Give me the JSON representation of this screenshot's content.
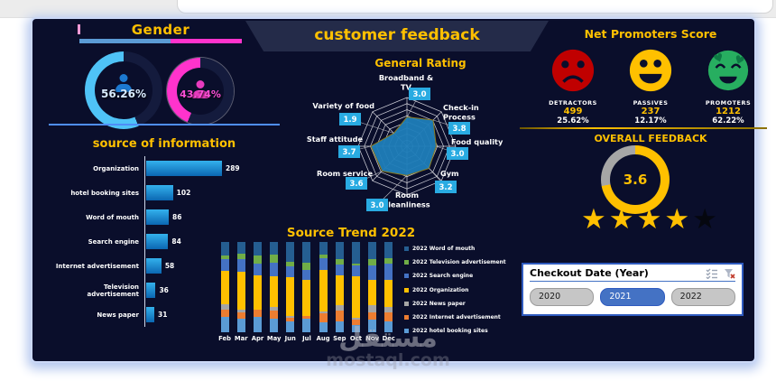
{
  "page": {
    "watermark_line1": "مستقل",
    "watermark_line2": "mostaql.com"
  },
  "header_banner": {
    "title": "customer feedback"
  },
  "gender": {
    "title": "Gender",
    "male": {
      "percent": "56.26%",
      "value": 56.26,
      "color": "#4fc3f7"
    },
    "female": {
      "percent": "43.74%",
      "value": 43.74,
      "color": "#ff33cc"
    }
  },
  "nps": {
    "title": "Net Promoters Score",
    "items": [
      {
        "label": "DETRACTORS",
        "count": "499",
        "percent": "25.62%",
        "color": "#c00000",
        "mood": "sad"
      },
      {
        "label": "PASSIVES",
        "count": "237",
        "percent": "12.17%",
        "color": "#ffc000",
        "mood": "happy"
      },
      {
        "label": "PROMOTERS",
        "count": "1212",
        "percent": "62.22%",
        "color": "#27ae60",
        "mood": "love"
      }
    ]
  },
  "overall_feedback": {
    "title": "OVERALL FEEDBACK",
    "score": "3.6",
    "value": 3.6,
    "max": 5,
    "stars_filled": 4,
    "stars_total": 5,
    "ring_color": "#ffc000",
    "ring_rest_color": "#a6a6a6"
  },
  "slicer": {
    "title": "Checkout Date (Year)",
    "icons": [
      "multi-select",
      "clear-filter"
    ],
    "options": [
      {
        "label": "2020",
        "selected": false
      },
      {
        "label": "2021",
        "selected": true
      },
      {
        "label": "2022",
        "selected": false
      }
    ]
  },
  "chart_data": [
    {
      "id": "general_rating",
      "type": "radar",
      "title": "General Rating",
      "max": 5,
      "rings": 8,
      "grid": true,
      "categories": [
        "Broadband & TV",
        "Check-in Process",
        "Food quality",
        "Gym",
        "Room cleanliness",
        "Room service",
        "Staff attitude",
        "Variety of food"
      ],
      "label_lines": [
        [
          "Broadband &",
          "TV"
        ],
        [
          "Check-in",
          "Process"
        ],
        [
          "Food quality"
        ],
        [
          "Gym"
        ],
        [
          "Room",
          "cleanliness"
        ],
        [
          "Room service"
        ],
        [
          "Staff attitude"
        ],
        [
          "Variety of food"
        ]
      ],
      "values": [
        3.0,
        3.8,
        3.0,
        3.2,
        3.0,
        3.6,
        3.7,
        1.9
      ],
      "value_labels": [
        "3.0",
        "3.8",
        "3.0",
        "3.2",
        "3.0",
        "3.6",
        "3.7",
        "1.9"
      ],
      "fill_color": "#1e7db8",
      "chip_color": "#29abe2"
    },
    {
      "id": "source_of_information",
      "type": "bar",
      "title": "source of information",
      "categories": [
        "Organization",
        "hotel booking sites",
        "Word of mouth",
        "Search engine",
        "Internet advertisement",
        "Television advertisement",
        "News paper"
      ],
      "values": [
        289,
        102,
        86,
        84,
        58,
        36,
        31
      ],
      "xlim": [
        0,
        300
      ],
      "bar_color": "#1b8fd4"
    },
    {
      "id": "source_trend",
      "type": "stacked-column",
      "title": "Source Trend 2022",
      "categories": [
        "Feb",
        "Mar",
        "Apr",
        "May",
        "Jun",
        "Jul",
        "Aug",
        "Sep",
        "Oct",
        "Nov",
        "Dec"
      ],
      "unit": "percent_of_total",
      "legend_position": "right",
      "legend_order": "top_is_last_series",
      "series": [
        {
          "name": "2022 hotel booking sites",
          "color": "#5b9bd5",
          "values": [
            17,
            15,
            17,
            15,
            12,
            15,
            11,
            12,
            8,
            14,
            12
          ]
        },
        {
          "name": "2022 Internet advertisement",
          "color": "#ed7d31",
          "values": [
            8,
            7,
            8,
            9,
            4,
            3,
            10,
            12,
            6,
            8,
            10
          ]
        },
        {
          "name": "2022 News paper",
          "color": "#a5a5a5",
          "values": [
            6,
            3,
            0,
            4,
            2,
            0,
            2,
            6,
            2,
            8,
            6
          ]
        },
        {
          "name": "2022 Organization",
          "color": "#ffc000",
          "values": [
            37,
            42,
            38,
            34,
            43,
            40,
            46,
            33,
            46,
            28,
            30
          ]
        },
        {
          "name": "2022 Search engine",
          "color": "#4472c4",
          "values": [
            13,
            14,
            13,
            15,
            12,
            11,
            13,
            12,
            12,
            16,
            18
          ]
        },
        {
          "name": "2022 Television advertisement",
          "color": "#70ad47",
          "values": [
            4,
            6,
            9,
            9,
            5,
            8,
            4,
            6,
            2,
            7,
            6
          ]
        },
        {
          "name": "2022 Word of mouth",
          "color": "#255e91",
          "values": [
            15,
            13,
            15,
            14,
            22,
            23,
            14,
            19,
            24,
            19,
            18
          ]
        }
      ]
    }
  ]
}
